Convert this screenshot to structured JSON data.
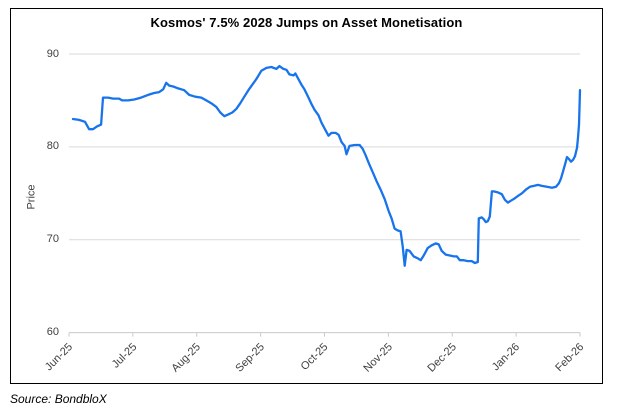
{
  "header": {
    "title": "Kosmos' 7.5% 2028 Jumps on Asset Monetisation"
  },
  "footer": {
    "source": "Source: BondbloX"
  },
  "colors": {
    "accent_line": "#1874EC",
    "gridline": "#D9D9D9",
    "axis_line": "#C9C9C9",
    "axis_text": "#404040",
    "border": "#000000",
    "background": "#FFFFFF"
  },
  "chart_data": {
    "type": "line",
    "title": "Kosmos' 7.5% 2028 Jumps on Asset Monetisation",
    "xlabel": "",
    "ylabel": "Price",
    "x_tick_labels": [
      "Jun-25",
      "Jul-25",
      "Aug-25",
      "Sep-25",
      "Oct-25",
      "Nov-25",
      "Dec-25",
      "Jan-26",
      "Feb-26"
    ],
    "x_unit": "months since Jun-25 tick (0 = Jun-25, 8 = Feb-26)",
    "xlim": [
      0,
      8
    ],
    "ylim": [
      60,
      90
    ],
    "yticks": [
      90,
      80,
      70,
      60
    ],
    "grid": "horizontal-only",
    "legend": "none",
    "series": [
      {
        "name": "Price",
        "color": "#1874EC",
        "points": [
          [
            0.063,
            83.0
          ],
          [
            0.157,
            82.9
          ],
          [
            0.251,
            82.7
          ],
          [
            0.314,
            81.9
          ],
          [
            0.376,
            81.9
          ],
          [
            0.439,
            82.2
          ],
          [
            0.502,
            82.4
          ],
          [
            0.533,
            85.3
          ],
          [
            0.612,
            85.3
          ],
          [
            0.69,
            85.2
          ],
          [
            0.784,
            85.2
          ],
          [
            0.831,
            85.0
          ],
          [
            0.925,
            85.0
          ],
          [
            1.02,
            85.1
          ],
          [
            1.129,
            85.3
          ],
          [
            1.239,
            85.6
          ],
          [
            1.333,
            85.8
          ],
          [
            1.412,
            85.9
          ],
          [
            1.475,
            86.2
          ],
          [
            1.522,
            86.9
          ],
          [
            1.569,
            86.6
          ],
          [
            1.631,
            86.5
          ],
          [
            1.71,
            86.3
          ],
          [
            1.804,
            86.1
          ],
          [
            1.882,
            85.6
          ],
          [
            1.976,
            85.4
          ],
          [
            2.071,
            85.3
          ],
          [
            2.149,
            85.0
          ],
          [
            2.227,
            84.7
          ],
          [
            2.306,
            84.3
          ],
          [
            2.369,
            83.7
          ],
          [
            2.431,
            83.3
          ],
          [
            2.494,
            83.5
          ],
          [
            2.557,
            83.7
          ],
          [
            2.62,
            84.1
          ],
          [
            2.682,
            84.7
          ],
          [
            2.745,
            85.4
          ],
          [
            2.808,
            86.1
          ],
          [
            2.871,
            86.7
          ],
          [
            2.933,
            87.3
          ],
          [
            3.012,
            88.2
          ],
          [
            3.09,
            88.5
          ],
          [
            3.169,
            88.6
          ],
          [
            3.247,
            88.4
          ],
          [
            3.294,
            88.7
          ],
          [
            3.357,
            88.4
          ],
          [
            3.404,
            88.3
          ],
          [
            3.451,
            87.8
          ],
          [
            3.514,
            87.7
          ],
          [
            3.545,
            87.9
          ],
          [
            3.592,
            87.3
          ],
          [
            3.639,
            86.7
          ],
          [
            3.686,
            86.2
          ],
          [
            3.749,
            85.3
          ],
          [
            3.796,
            84.6
          ],
          [
            3.843,
            84.0
          ],
          [
            3.906,
            83.4
          ],
          [
            3.953,
            82.6
          ],
          [
            4.016,
            81.8
          ],
          [
            4.063,
            81.2
          ],
          [
            4.11,
            81.5
          ],
          [
            4.173,
            81.5
          ],
          [
            4.22,
            81.3
          ],
          [
            4.267,
            80.5
          ],
          [
            4.314,
            80.1
          ],
          [
            4.345,
            79.2
          ],
          [
            4.392,
            80.1
          ],
          [
            4.471,
            80.2
          ],
          [
            4.549,
            80.2
          ],
          [
            4.596,
            79.8
          ],
          [
            4.643,
            79.1
          ],
          [
            4.69,
            78.3
          ],
          [
            4.753,
            77.3
          ],
          [
            4.816,
            76.3
          ],
          [
            4.878,
            75.4
          ],
          [
            4.941,
            74.4
          ],
          [
            5.004,
            73.1
          ],
          [
            5.051,
            72.3
          ],
          [
            5.098,
            71.2
          ],
          [
            5.145,
            71.0
          ],
          [
            5.192,
            70.9
          ],
          [
            5.224,
            69.3
          ],
          [
            5.255,
            67.2
          ],
          [
            5.286,
            68.9
          ],
          [
            5.333,
            68.8
          ],
          [
            5.396,
            68.2
          ],
          [
            5.459,
            68.0
          ],
          [
            5.506,
            67.8
          ],
          [
            5.553,
            68.3
          ],
          [
            5.616,
            69.1
          ],
          [
            5.678,
            69.4
          ],
          [
            5.741,
            69.6
          ],
          [
            5.788,
            69.5
          ],
          [
            5.835,
            68.8
          ],
          [
            5.898,
            68.4
          ],
          [
            5.961,
            68.3
          ],
          [
            6.024,
            68.2
          ],
          [
            6.071,
            68.2
          ],
          [
            6.118,
            67.8
          ],
          [
            6.18,
            67.8
          ],
          [
            6.243,
            67.7
          ],
          [
            6.306,
            67.7
          ],
          [
            6.353,
            67.5
          ],
          [
            6.4,
            67.6
          ],
          [
            6.416,
            72.3
          ],
          [
            6.463,
            72.4
          ],
          [
            6.494,
            72.2
          ],
          [
            6.525,
            71.9
          ],
          [
            6.557,
            72.0
          ],
          [
            6.588,
            72.5
          ],
          [
            6.62,
            75.2
          ],
          [
            6.651,
            75.2
          ],
          [
            6.714,
            75.1
          ],
          [
            6.776,
            74.9
          ],
          [
            6.824,
            74.3
          ],
          [
            6.871,
            74.0
          ],
          [
            6.918,
            74.2
          ],
          [
            6.965,
            74.4
          ],
          [
            7.027,
            74.7
          ],
          [
            7.09,
            75.0
          ],
          [
            7.153,
            75.4
          ],
          [
            7.216,
            75.7
          ],
          [
            7.278,
            75.8
          ],
          [
            7.341,
            75.9
          ],
          [
            7.404,
            75.8
          ],
          [
            7.482,
            75.7
          ],
          [
            7.561,
            75.6
          ],
          [
            7.624,
            75.7
          ],
          [
            7.671,
            76.1
          ],
          [
            7.702,
            76.6
          ],
          [
            7.733,
            77.3
          ],
          [
            7.765,
            78.1
          ],
          [
            7.796,
            78.9
          ],
          [
            7.827,
            78.7
          ],
          [
            7.859,
            78.4
          ],
          [
            7.89,
            78.6
          ],
          [
            7.922,
            79.0
          ],
          [
            7.953,
            79.9
          ],
          [
            7.969,
            81.0
          ],
          [
            7.984,
            82.4
          ],
          [
            8.0,
            86.1
          ]
        ]
      }
    ]
  }
}
